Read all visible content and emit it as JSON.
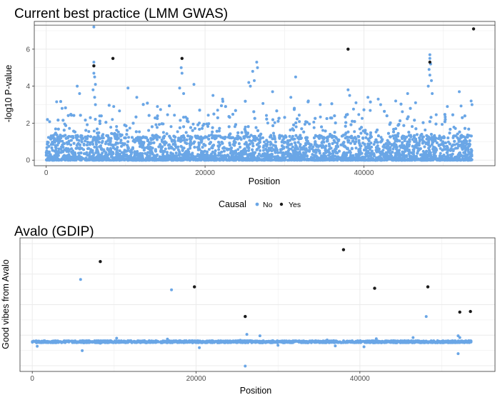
{
  "chart_data": [
    {
      "type": "scatter",
      "title": "Current best practice (LMM GWAS)",
      "xlabel": "Position",
      "ylabel": "-log10 P-value",
      "xlim": [
        -1500,
        56500
      ],
      "ylim": [
        -0.3,
        7.5
      ],
      "xticks": [
        0,
        20000,
        40000
      ],
      "yticks": [
        0,
        2,
        4,
        6
      ],
      "grid": true,
      "hline": 7.3,
      "series": [
        {
          "name": "No",
          "color": "#6aa6e6",
          "points": [
            [
              6000,
              7.2
            ],
            [
              6000,
              5.3
            ],
            [
              6000,
              4.7
            ],
            [
              6100,
              4.5
            ],
            [
              6200,
              4.1
            ],
            [
              5900,
              3.8
            ],
            [
              6100,
              3.4
            ],
            [
              6200,
              3.0
            ],
            [
              3900,
              4.0
            ],
            [
              4200,
              3.6
            ],
            [
              10300,
              3.9
            ],
            [
              11400,
              3.4
            ],
            [
              17000,
              5.0
            ],
            [
              17100,
              4.7
            ],
            [
              16800,
              3.9
            ],
            [
              17300,
              3.6
            ],
            [
              18600,
              4.1
            ],
            [
              21000,
              3.5
            ],
            [
              22200,
              3.3
            ],
            [
              25500,
              4.2
            ],
            [
              25700,
              4.0
            ],
            [
              26000,
              4.8
            ],
            [
              26200,
              4.3
            ],
            [
              26500,
              5.3
            ],
            [
              26600,
              5.0
            ],
            [
              28500,
              3.7
            ],
            [
              31400,
              4.5
            ],
            [
              30800,
              3.4
            ],
            [
              33000,
              3.2
            ],
            [
              38000,
              3.8
            ],
            [
              38200,
              3.5
            ],
            [
              39000,
              3.1
            ],
            [
              40500,
              3.4
            ],
            [
              41800,
              3.3
            ],
            [
              42100,
              3.0
            ],
            [
              44000,
              3.2
            ],
            [
              45500,
              3.6
            ],
            [
              46500,
              3.1
            ],
            [
              48300,
              5.7
            ],
            [
              48300,
              5.5
            ],
            [
              48400,
              5.2
            ],
            [
              48200,
              4.9
            ],
            [
              48300,
              4.6
            ],
            [
              48500,
              4.3
            ],
            [
              48100,
              4.0
            ],
            [
              48600,
              3.6
            ],
            [
              52000,
              3.7
            ],
            [
              53500,
              3.2
            ],
            [
              53600,
              3.0
            ],
            [
              8500,
              2.9
            ],
            [
              2000,
              2.8
            ],
            [
              14000,
              2.9
            ],
            [
              34500,
              3.0
            ],
            [
              50500,
              2.9
            ]
          ]
        },
        {
          "name": "Yes",
          "color": "#1a1a1a",
          "points": [
            [
              6000,
              5.1
            ],
            [
              8400,
              5.5
            ],
            [
              17100,
              5.5
            ],
            [
              38000,
              6.0
            ],
            [
              48300,
              5.3
            ],
            [
              53800,
              7.1
            ]
          ]
        }
      ]
    },
    {
      "type": "scatter",
      "title": "Avalo (GDIP)",
      "xlabel": "Position",
      "ylabel": "Good vibes from Avalo",
      "xlim": [
        -1500,
        56500
      ],
      "ylim": [
        -1.0,
        3.5
      ],
      "xticks": [
        0,
        20000,
        40000
      ],
      "yticks": [],
      "grid": true,
      "series": [
        {
          "name": "No",
          "color": "#6aa6e6",
          "points": [
            [
              5900,
              2.1
            ],
            [
              17000,
              1.75
            ],
            [
              26000,
              0.85
            ],
            [
              26000,
              -0.82
            ],
            [
              26200,
              0.25
            ],
            [
              27800,
              0.2
            ],
            [
              48100,
              0.85
            ],
            [
              52000,
              0.2
            ],
            [
              52200,
              0.14
            ],
            [
              52000,
              -0.4
            ],
            [
              6100,
              -0.3
            ],
            [
              600,
              -0.15
            ],
            [
              10300,
              0.12
            ],
            [
              20400,
              -0.2
            ],
            [
              25400,
              0.05
            ],
            [
              36000,
              0.06
            ],
            [
              37000,
              -0.14
            ],
            [
              40500,
              -0.17
            ],
            [
              42000,
              0.1
            ],
            [
              46500,
              0.14
            ],
            [
              16500,
              0.09
            ],
            [
              30000,
              -0.12
            ],
            [
              8300,
              -0.05
            ]
          ]
        },
        {
          "name": "Yes",
          "color": "#1a1a1a",
          "points": [
            [
              8300,
              2.7
            ],
            [
              19800,
              1.85
            ],
            [
              26000,
              0.85
            ],
            [
              38000,
              3.1
            ],
            [
              41800,
              1.8
            ],
            [
              48300,
              1.85
            ],
            [
              52200,
              1.0
            ],
            [
              53500,
              1.02
            ]
          ]
        }
      ]
    }
  ],
  "legend": {
    "title": "Causal",
    "items": [
      {
        "label": "No",
        "color": "#6aa6e6"
      },
      {
        "label": "Yes",
        "color": "#1a1a1a"
      }
    ]
  }
}
